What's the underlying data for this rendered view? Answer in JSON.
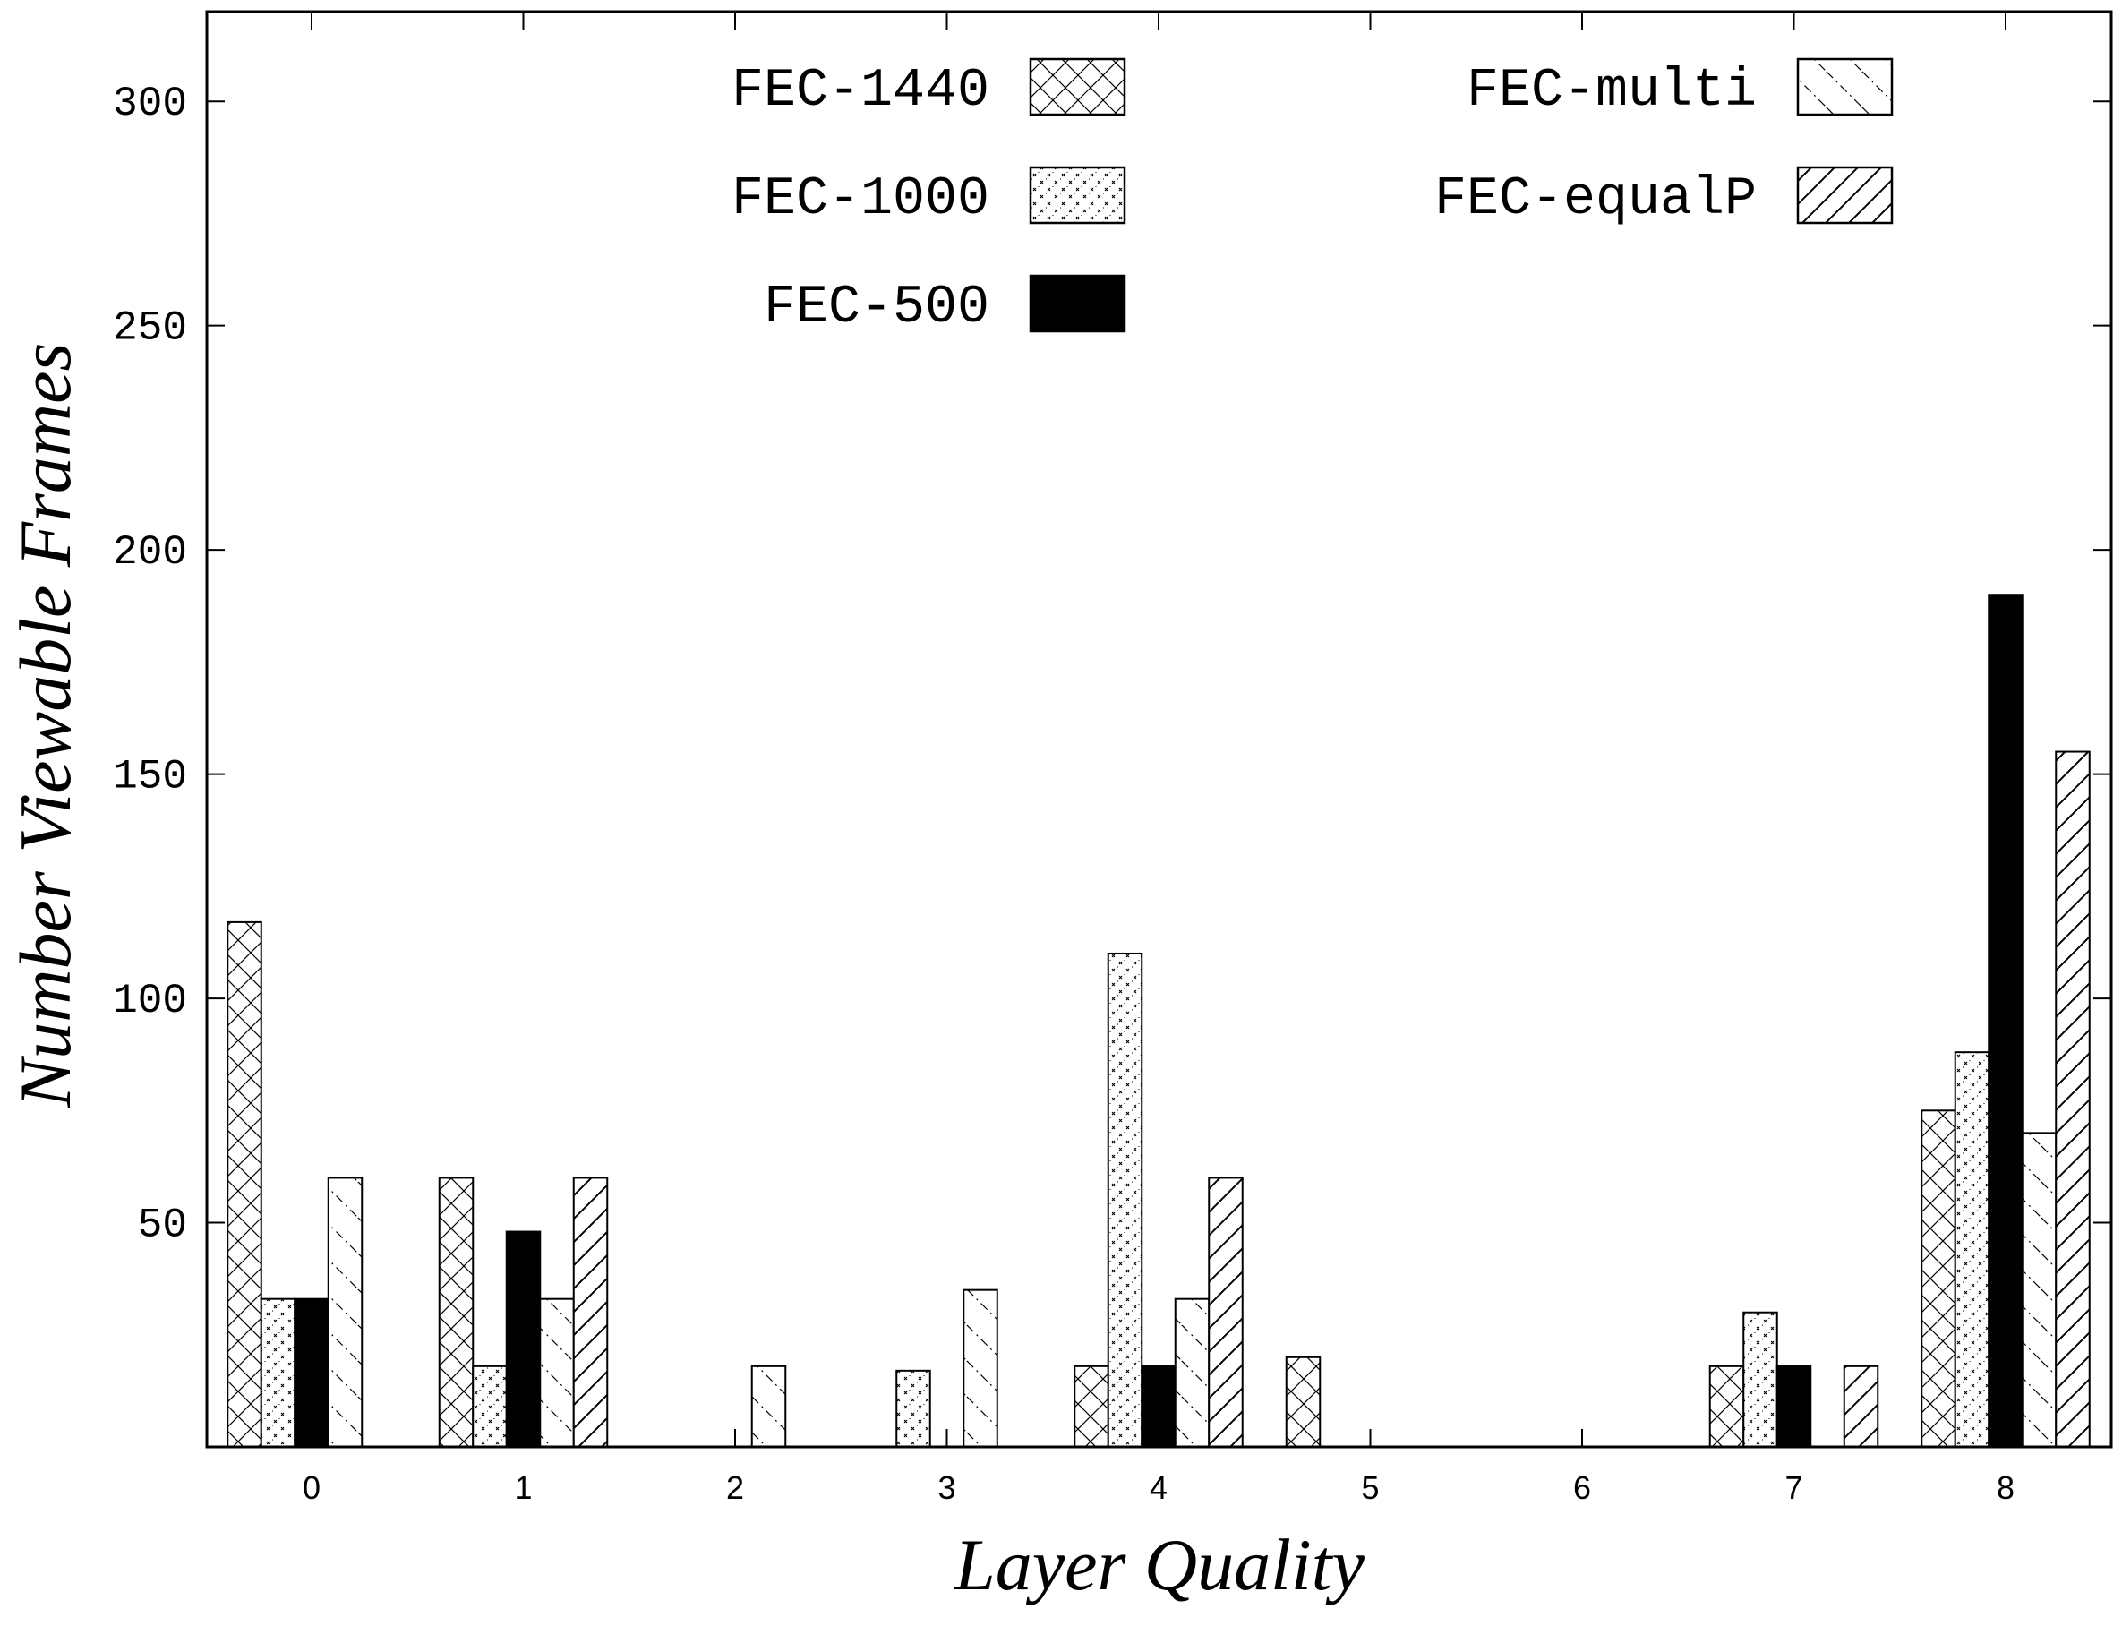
{
  "chart_data": {
    "type": "bar",
    "title": "",
    "xlabel": "Layer Quality",
    "ylabel": "Number Viewable Frames",
    "ylim": [
      0,
      320
    ],
    "yticks": [
      50,
      100,
      150,
      200,
      250,
      300
    ],
    "categories": [
      "0",
      "1",
      "2",
      "3",
      "4",
      "5",
      "6",
      "7",
      "8"
    ],
    "legend_position": "top",
    "series": [
      {
        "name": "FEC-1440",
        "pattern": "crosshatch",
        "values": [
          117,
          60,
          0,
          0,
          18,
          20,
          0,
          18,
          75
        ]
      },
      {
        "name": "FEC-1000",
        "pattern": "dots",
        "values": [
          33,
          18,
          0,
          17,
          110,
          0,
          0,
          30,
          88
        ]
      },
      {
        "name": "FEC-500",
        "pattern": "solid",
        "values": [
          33,
          48,
          0,
          0,
          18,
          0,
          0,
          18,
          190
        ]
      },
      {
        "name": "FEC-multi",
        "pattern": "dashdiag",
        "values": [
          60,
          33,
          18,
          35,
          33,
          0,
          0,
          0,
          70
        ]
      },
      {
        "name": "FEC-equalP",
        "pattern": "diag",
        "values": [
          0,
          60,
          0,
          0,
          60,
          0,
          0,
          18,
          155
        ]
      }
    ],
    "colors": {
      "ink": "#000000",
      "background": "#ffffff"
    }
  }
}
